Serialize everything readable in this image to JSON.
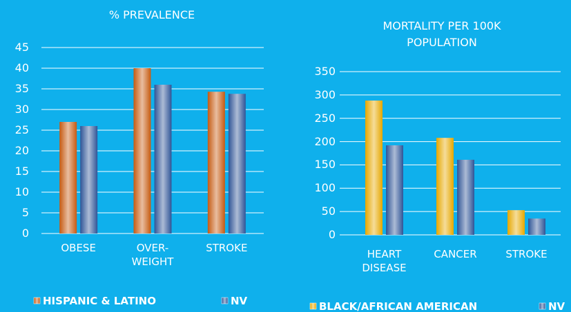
{
  "chart_data": [
    {
      "type": "bar",
      "title": "% PREVALENCE",
      "categories": [
        "OBESE",
        "OVER-WEIGHT",
        "STROKE"
      ],
      "series": [
        {
          "name": "HISPANIC & LATINO",
          "color": "#c55a11",
          "values": [
            27,
            40,
            34.3
          ]
        },
        {
          "name": "NV",
          "color": "#2f5597",
          "values": [
            26,
            36,
            33.8
          ]
        }
      ],
      "ylim": [
        0,
        45
      ],
      "yticks": [
        0,
        5,
        10,
        15,
        20,
        25,
        30,
        35,
        40,
        45
      ],
      "grid": true
    },
    {
      "type": "bar",
      "title": "MORTALITY PER 100K POPULATION",
      "categories": [
        "HEART DISEASE",
        "CANCER",
        "STROKE"
      ],
      "series": [
        {
          "name": "BLACK/AFRICAN AMERICAN",
          "color": "#e6a800",
          "values": [
            288,
            208,
            53
          ]
        },
        {
          "name": "NV",
          "color": "#2f5597",
          "values": [
            192,
            161,
            35
          ]
        }
      ],
      "ylim": [
        0,
        350
      ],
      "yticks": [
        0,
        50,
        100,
        150,
        200,
        250,
        300,
        350
      ],
      "grid": true
    }
  ]
}
